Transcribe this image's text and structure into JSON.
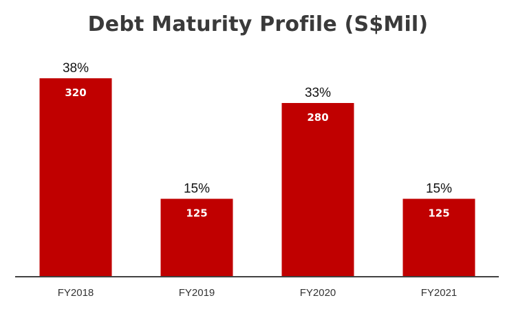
{
  "chart_data": {
    "type": "bar",
    "title": "Debt Maturity Profile (S$Mil)",
    "categories": [
      "FY2018",
      "FY2019",
      "FY2020",
      "FY2021"
    ],
    "values": [
      320,
      125,
      280,
      125
    ],
    "percent_labels": [
      "38%",
      "15%",
      "33%",
      "15%"
    ],
    "value_labels": [
      "320",
      "125",
      "280",
      "125"
    ],
    "ylim": [
      0,
      380
    ],
    "grid": false,
    "legend": "none",
    "colors": {
      "bar": "#C00000",
      "axis": "#404040"
    }
  }
}
